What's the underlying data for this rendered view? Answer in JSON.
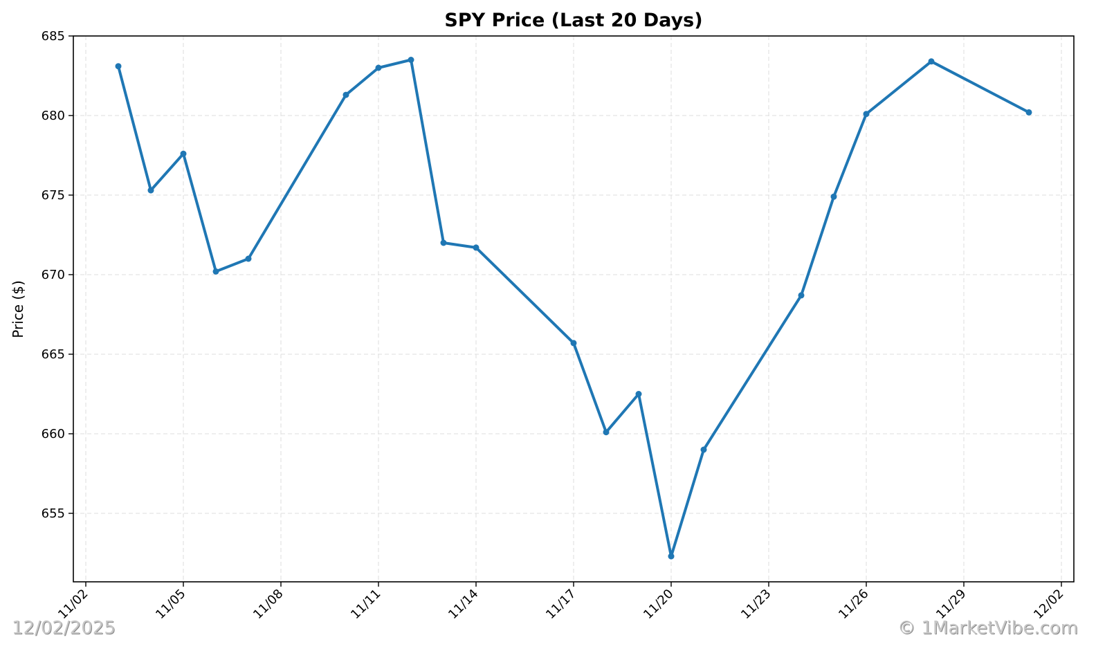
{
  "chart_data": {
    "type": "line",
    "title": "SPY Price (Last 20 Days)",
    "xlabel": "",
    "ylabel": "Price ($)",
    "ylim": [
      650.6,
      685
    ],
    "yticks": [
      655,
      660,
      665,
      670,
      675,
      680,
      685
    ],
    "xticks": [
      "11/02",
      "11/05",
      "11/08",
      "11/11",
      "11/14",
      "11/17",
      "11/20",
      "11/23",
      "11/26",
      "11/29",
      "12/02"
    ],
    "grid": true,
    "legend": null,
    "line_color": "#1f77b4",
    "x": [
      "11/03",
      "11/04",
      "11/05",
      "11/06",
      "11/07",
      "11/10",
      "11/11",
      "11/12",
      "11/13",
      "11/14",
      "11/17",
      "11/18",
      "11/19",
      "11/20",
      "11/21",
      "11/24",
      "11/25",
      "11/26",
      "11/28",
      "12/01"
    ],
    "series": [
      {
        "name": "SPY",
        "values": [
          683.1,
          675.3,
          677.6,
          670.2,
          671.0,
          681.3,
          683.0,
          683.5,
          672.0,
          671.7,
          665.7,
          660.1,
          662.5,
          652.3,
          659.0,
          668.7,
          674.9,
          680.1,
          683.4,
          680.2
        ]
      }
    ]
  },
  "watermarks": {
    "date": "12/02/2025",
    "site": "© 1MarketVibe.com"
  }
}
